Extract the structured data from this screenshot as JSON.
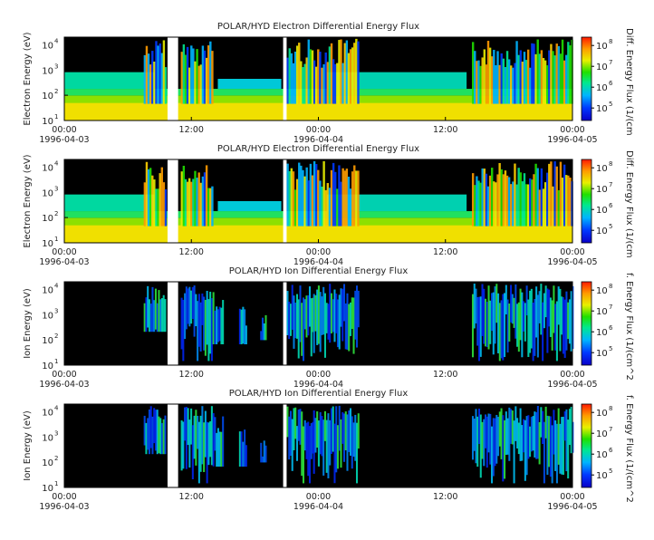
{
  "chart_data": [
    {
      "type": "heatmap",
      "title": "POLAR/HYD  Electron Differential Energy Flux",
      "ylabel": "Electron Energy (eV)",
      "yscale": "log",
      "ylim": [
        10,
        20000
      ],
      "y_ticks": [
        "10",
        "10",
        "10",
        "10"
      ],
      "y_tick_exps": [
        "1",
        "2",
        "3",
        "4"
      ],
      "x_ticks": [
        "00:00",
        "12:00",
        "00:00",
        "12:00",
        "00:00"
      ],
      "x_dates": [
        "1996-04-03",
        "1996-04-04",
        "1996-04-05"
      ],
      "xlim": [
        "1996-04-03 00:00",
        "1996-04-05 00:00"
      ],
      "data_gaps_utc": [
        [
          "1996-04-03 09:45",
          "1996-04-03 10:45"
        ],
        [
          "1996-04-03 20:40",
          "1996-04-03 21:00"
        ]
      ],
      "colorbar": {
        "label": "Diff. Energy Flux (1/(cm",
        "scale": "log",
        "ticks": [
          "10",
          "10",
          "10",
          "10"
        ],
        "tick_exps": [
          "5",
          "6",
          "7",
          "8"
        ]
      }
    },
    {
      "type": "heatmap",
      "title": "POLAR/HYD  Electron Differential Energy Flux",
      "ylabel": "Electron Energy (eV)",
      "yscale": "log",
      "ylim": [
        10,
        20000
      ],
      "y_ticks": [
        "10",
        "10",
        "10",
        "10"
      ],
      "y_tick_exps": [
        "1",
        "2",
        "3",
        "4"
      ],
      "x_ticks": [
        "00:00",
        "12:00",
        "00:00",
        "12:00",
        "00:00"
      ],
      "x_dates": [
        "1996-04-03",
        "1996-04-04",
        "1996-04-05"
      ],
      "xlim": [
        "1996-04-03 00:00",
        "1996-04-05 00:00"
      ],
      "data_gaps_utc": [
        [
          "1996-04-03 09:45",
          "1996-04-03 10:45"
        ],
        [
          "1996-04-03 20:40",
          "1996-04-03 21:00"
        ]
      ],
      "colorbar": {
        "label": "Diff. Energy Flux (1/(cm",
        "scale": "log",
        "ticks": [
          "10",
          "10",
          "10",
          "10"
        ],
        "tick_exps": [
          "5",
          "6",
          "7",
          "8"
        ]
      }
    },
    {
      "type": "heatmap",
      "title": "POLAR/HYD  Ion Differential Energy Flux",
      "ylabel": "Ion Energy (eV)",
      "yscale": "log",
      "ylim": [
        10,
        20000
      ],
      "y_ticks": [
        "10",
        "10",
        "10",
        "10"
      ],
      "y_tick_exps": [
        "1",
        "2",
        "3",
        "4"
      ],
      "x_ticks": [
        "00:00",
        "12:00",
        "00:00",
        "12:00",
        "00:00"
      ],
      "x_dates": [
        "1996-04-03",
        "1996-04-04",
        "1996-04-05"
      ],
      "xlim": [
        "1996-04-03 00:00",
        "1996-04-05 00:00"
      ],
      "data_gaps_utc": [
        [
          "1996-04-03 09:45",
          "1996-04-03 10:45"
        ],
        [
          "1996-04-03 20:40",
          "1996-04-03 21:00"
        ]
      ],
      "colorbar": {
        "label": "f. Energy Flux (1/(cm^2",
        "scale": "log",
        "ticks": [
          "10",
          "10",
          "10",
          "10"
        ],
        "tick_exps": [
          "5",
          "6",
          "7",
          "8"
        ]
      }
    },
    {
      "type": "heatmap",
      "title": "POLAR/HYD  Ion Differential Energy Flux",
      "ylabel": "Ion Energy (eV)",
      "yscale": "log",
      "ylim": [
        10,
        20000
      ],
      "y_ticks": [
        "10",
        "10",
        "10",
        "10"
      ],
      "y_tick_exps": [
        "1",
        "2",
        "3",
        "4"
      ],
      "x_ticks": [
        "00:00",
        "12:00",
        "00:00",
        "12:00",
        "00:00"
      ],
      "x_dates": [
        "1996-04-03",
        "1996-04-04",
        "1996-04-05"
      ],
      "xlim": [
        "1996-04-03 00:00",
        "1996-04-05 00:00"
      ],
      "data_gaps_utc": [
        [
          "1996-04-03 09:45",
          "1996-04-03 10:45"
        ],
        [
          "1996-04-03 20:40",
          "1996-04-03 21:00"
        ]
      ],
      "colorbar": {
        "label": "f. Energy Flux (1/(cm^2",
        "scale": "log",
        "ticks": [
          "10",
          "10",
          "10",
          "10"
        ],
        "tick_exps": [
          "5",
          "6",
          "7",
          "8"
        ]
      }
    }
  ]
}
